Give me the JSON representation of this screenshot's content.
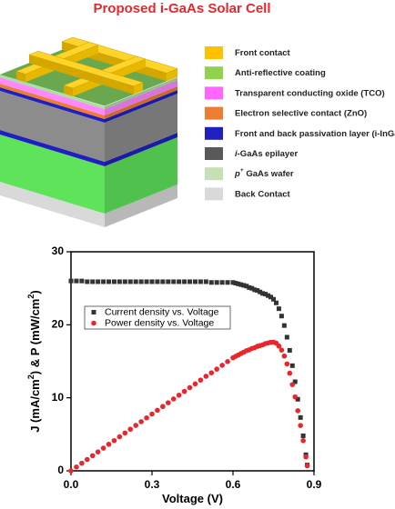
{
  "diagram": {
    "title": "Proposed i-GaAs Solar Cell",
    "legend": [
      {
        "color": "#ffc000",
        "label": [
          {
            "text": "Front contact"
          }
        ]
      },
      {
        "color": "#92d050",
        "label": [
          {
            "text": "Anti-reflective coating"
          }
        ]
      },
      {
        "color": "#ff66ff",
        "label": [
          {
            "text": "Transparent conducting oxide (TCO)"
          }
        ]
      },
      {
        "color": "#ed7d31",
        "label": [
          {
            "text": "Electron selective contact (ZnO)"
          }
        ]
      },
      {
        "color": "#2020c0",
        "label": [
          {
            "text": "Front and back passivation layer (i-InGaP)"
          }
        ]
      },
      {
        "color": "#595959",
        "label": [
          {
            "text": "i",
            "italic": true
          },
          {
            "text": "-GaAs epilayer"
          }
        ]
      },
      {
        "color": "#c5e0b4",
        "label": [
          {
            "text": "p",
            "italic": true
          },
          {
            "text": "+",
            "sup": true
          },
          {
            "text": " GaAs wafer"
          }
        ]
      },
      {
        "color": "#d9d9d9",
        "label": [
          {
            "text": "Back Contact"
          }
        ]
      }
    ]
  },
  "chart_data": {
    "type": "scatter",
    "xlabel": [
      {
        "text": "Voltage (V)"
      }
    ],
    "ylabel": [
      {
        "text": "J (mA/cm"
      },
      {
        "text": "2",
        "sup": true
      },
      {
        "text": ") & P (mW/cm"
      },
      {
        "text": "2",
        "sup": true
      },
      {
        "text": ")"
      }
    ],
    "xlim": [
      0,
      0.9
    ],
    "ylim": [
      0,
      30
    ],
    "xticks": [
      {
        "value": 0,
        "label": "0.0"
      },
      0.3,
      0.6,
      0.9
    ],
    "yticks": [
      0,
      10,
      20,
      30
    ],
    "legend": "upper left",
    "x": [
      0,
      0.02,
      0.04,
      0.06,
      0.08,
      0.1,
      0.12,
      0.14,
      0.16,
      0.18,
      0.2,
      0.22,
      0.24,
      0.26,
      0.28,
      0.3,
      0.32,
      0.34,
      0.36,
      0.38,
      0.4,
      0.42,
      0.44,
      0.46,
      0.48,
      0.5,
      0.52,
      0.54,
      0.56,
      0.58,
      0.6,
      0.61,
      0.62,
      0.63,
      0.64,
      0.65,
      0.66,
      0.67,
      0.68,
      0.69,
      0.7,
      0.71,
      0.72,
      0.73,
      0.74,
      0.75,
      0.76,
      0.77,
      0.78,
      0.79,
      0.8,
      0.81,
      0.82,
      0.83,
      0.84,
      0.85,
      0.86,
      0.87,
      0.875
    ],
    "series": [
      {
        "name": "Current density vs. Voltage",
        "color": "#333333",
        "marker": "square",
        "values": [
          26.0,
          26.0,
          26.0,
          25.9,
          25.9,
          25.9,
          25.9,
          25.9,
          25.9,
          25.9,
          25.9,
          25.9,
          25.9,
          25.9,
          25.9,
          25.9,
          25.9,
          25.9,
          25.9,
          25.9,
          25.9,
          25.9,
          25.9,
          25.9,
          25.9,
          25.9,
          25.8,
          25.8,
          25.8,
          25.8,
          25.8,
          25.7,
          25.6,
          25.5,
          25.4,
          25.3,
          25.1,
          25.0,
          24.8,
          24.7,
          24.5,
          24.3,
          24.2,
          24.0,
          23.8,
          23.5,
          23.0,
          22.2,
          21.2,
          19.9,
          18.3,
          16.5,
          14.4,
          12.2,
          9.8,
          7.3,
          4.8,
          2.2,
          0.8
        ]
      },
      {
        "name": "Power density vs. Voltage",
        "color": "#e8262b",
        "marker": "circle",
        "values": [
          0,
          0.52,
          1.04,
          1.55,
          2.07,
          2.59,
          3.11,
          3.63,
          4.14,
          4.66,
          5.18,
          5.7,
          6.22,
          6.73,
          7.25,
          7.77,
          8.29,
          8.81,
          9.32,
          9.84,
          10.36,
          10.88,
          11.4,
          11.91,
          12.43,
          12.95,
          13.42,
          13.93,
          14.45,
          14.96,
          15.48,
          15.68,
          15.87,
          16.07,
          16.26,
          16.45,
          16.57,
          16.75,
          16.86,
          17.04,
          17.15,
          17.25,
          17.42,
          17.52,
          17.61,
          17.63,
          17.48,
          17.09,
          16.54,
          15.72,
          14.64,
          13.37,
          11.81,
          10.13,
          8.23,
          6.21,
          4.13,
          1.91,
          0.7
        ]
      }
    ]
  }
}
